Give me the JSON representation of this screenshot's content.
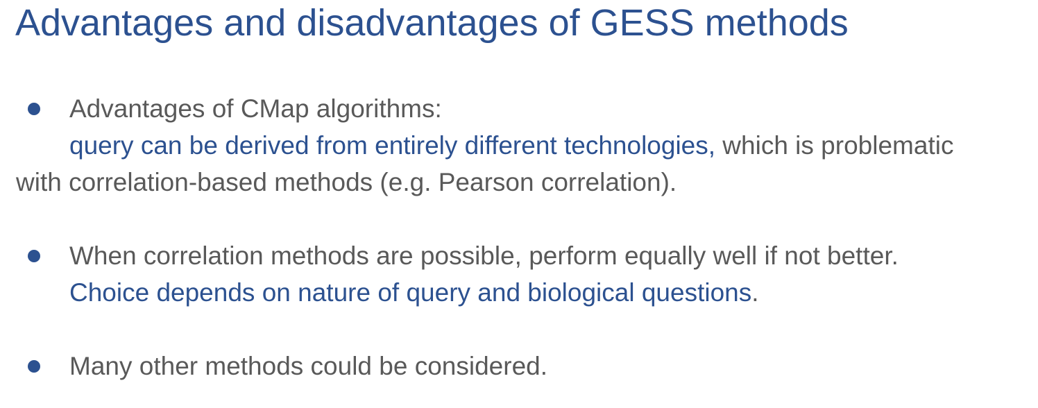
{
  "slide": {
    "title": "Advantages and disadvantages of GESS methods",
    "bullets": [
      {
        "line1": "Advantages of CMap algorithms:",
        "line2_accent": "query can be derived from entirely different technologies,",
        "line2_rest": " which is problematic",
        "line3": "with correlation-based methods (e.g. Pearson correlation)."
      },
      {
        "line1": "When correlation methods are possible, perform equally well if not better.",
        "line2_accent": "Choice depends on nature of query and biological questions",
        "line2_rest": "."
      },
      {
        "line1": "Many other methods could be considered."
      }
    ]
  },
  "colors": {
    "accent": "#2c5190",
    "body_text": "#595959",
    "background": "#ffffff"
  }
}
